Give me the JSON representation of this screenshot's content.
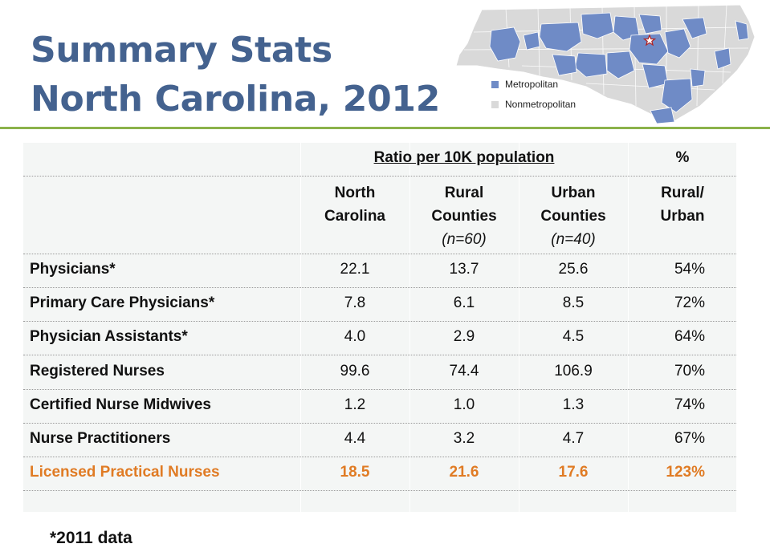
{
  "title": {
    "line1": "Summary Stats",
    "line2": "North Carolina, 2012"
  },
  "legend": [
    {
      "label": "Metropolitan",
      "color": "#6f8bc6"
    },
    {
      "label": "Nonmetropolitan",
      "color": "#d9d9d9"
    }
  ],
  "table": {
    "group_header": "Ratio per 10K population",
    "pct_header": "%",
    "columns": [
      {
        "line1": "North",
        "line2": "Carolina",
        "note": ""
      },
      {
        "line1": "Rural",
        "line2": "Counties",
        "note": "(n=60)"
      },
      {
        "line1": "Urban",
        "line2": "Counties",
        "note": "(n=40)"
      },
      {
        "line1": "Rural/",
        "line2": "Urban",
        "note": ""
      }
    ],
    "rows": [
      {
        "label": "Physicians*",
        "nc": "22.1",
        "rural": "13.7",
        "urban": "25.6",
        "pct": "54%"
      },
      {
        "label": "Primary Care Physicians*",
        "nc": "7.8",
        "rural": "6.1",
        "urban": "8.5",
        "pct": "72%"
      },
      {
        "label": "Physician Assistants*",
        "nc": "4.0",
        "rural": "2.9",
        "urban": "4.5",
        "pct": "64%"
      },
      {
        "label": "Registered Nurses",
        "nc": "99.6",
        "rural": "74.4",
        "urban": "106.9",
        "pct": "70%"
      },
      {
        "label": "Certified Nurse Midwives",
        "nc": "1.2",
        "rural": "1.0",
        "urban": "1.3",
        "pct": "74%"
      },
      {
        "label": "Nurse Practitioners",
        "nc": "4.4",
        "rural": "3.2",
        "urban": "4.7",
        "pct": "67%"
      },
      {
        "label": "Licensed Practical Nurses",
        "nc": "18.5",
        "rural": "21.6",
        "urban": "17.6",
        "pct": "123%",
        "highlight": true
      }
    ]
  },
  "footnote": "*2011 data",
  "colors": {
    "title": "#44628f",
    "rule": "#8bb24a",
    "highlight": "#e07b24"
  }
}
